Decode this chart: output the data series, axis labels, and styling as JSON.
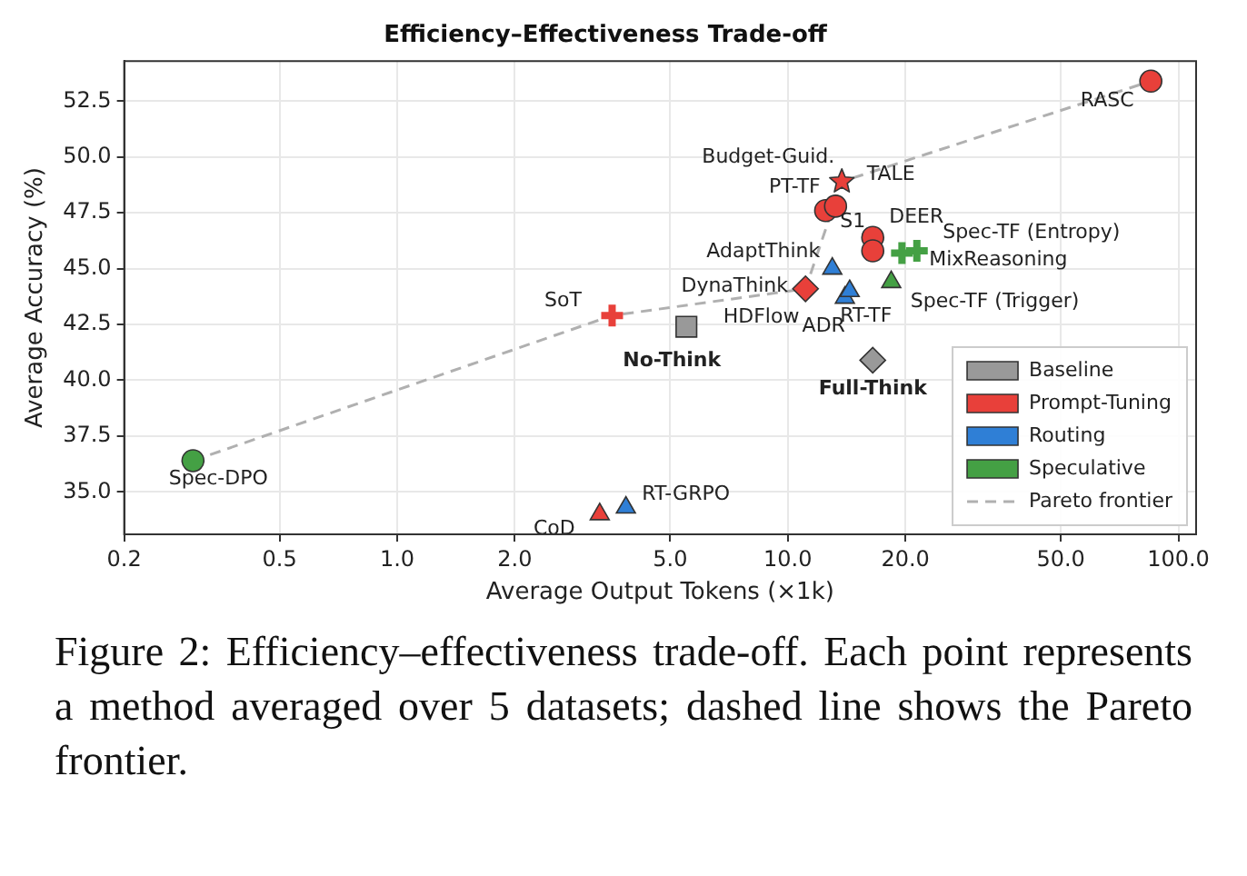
{
  "chart_data": {
    "type": "scatter",
    "title": "Efficiency–Effectiveness Trade-off",
    "xlabel": "Average Output Tokens (×1k)",
    "ylabel": "Average Accuracy (%)",
    "log": "x",
    "grid": true,
    "legend": "bottom right",
    "xlim": [
      0.2,
      111
    ],
    "ylim": [
      33.1,
      54.3
    ],
    "xticks": [
      {
        "value": 0.2,
        "label": "0.2"
      },
      {
        "value": 0.5,
        "label": "0.5"
      },
      {
        "value": 1,
        "label": "1.0"
      },
      {
        "value": 2,
        "label": "2.0"
      },
      {
        "value": 5,
        "label": "5.0"
      },
      {
        "value": 10,
        "label": "10.0"
      },
      {
        "value": 20,
        "label": "20.0"
      },
      {
        "value": 50,
        "label": "50.0"
      },
      {
        "value": 100,
        "label": "100.0"
      }
    ],
    "yticks": [
      {
        "value": 35,
        "label": "35.0"
      },
      {
        "value": 37.5,
        "label": "37.5"
      },
      {
        "value": 40,
        "label": "40.0"
      },
      {
        "value": 42.5,
        "label": "42.5"
      },
      {
        "value": 45,
        "label": "45.0"
      },
      {
        "value": 47.5,
        "label": "47.5"
      },
      {
        "value": 50,
        "label": "50.0"
      },
      {
        "value": 52.5,
        "label": "52.5"
      }
    ],
    "series": [
      {
        "name": "Baseline",
        "color": "#999999",
        "marker": "square",
        "x": [
          5.5
        ],
        "values": [
          42.4
        ]
      },
      {
        "color": "#999999",
        "marker": "diamond",
        "x": [
          16.5
        ],
        "values": [
          40.9
        ]
      },
      {
        "name": "Prompt-Tuning",
        "color": "#e8403a",
        "marker": "circle",
        "x": [
          12.5,
          13.25,
          16.5,
          16.5,
          85
        ],
        "values": [
          47.6,
          47.8,
          46.4,
          45.8,
          53.4
        ]
      },
      {
        "color": "#e8403a",
        "marker": "cross",
        "x": [
          3.55
        ],
        "values": [
          42.9
        ]
      },
      {
        "color": "#e8403a",
        "marker": "triangle",
        "x": [
          3.3
        ],
        "values": [
          34.0
        ]
      },
      {
        "color": "#e8403a",
        "marker": "diamond",
        "x": [
          11.1
        ],
        "values": [
          44.1
        ]
      },
      {
        "color": "#e8403a",
        "marker": "star",
        "x": [
          13.75
        ],
        "values": [
          48.9
        ]
      },
      {
        "name": "Routing",
        "color": "#2f7fd6",
        "marker": "triangle",
        "x": [
          13,
          14,
          14.2,
          14.4,
          3.85
        ],
        "values": [
          45.0,
          43.7,
          null,
          44.0,
          34.3
        ]
      },
      {
        "name": "Speculative",
        "color": "#44a044",
        "marker": "circle",
        "x": [
          0.3
        ],
        "values": [
          36.4
        ]
      },
      {
        "color": "#44a044",
        "marker": "cross",
        "x": [
          21.4,
          19.6
        ],
        "values": [
          45.8,
          45.7
        ]
      },
      {
        "color": "#44a044",
        "marker": "triangle",
        "x": [
          18.4
        ],
        "values": [
          44.4
        ]
      },
      {
        "name": "Pareto frontier",
        "type": "line",
        "color": "#b0b0b0",
        "line_style": "dashed",
        "marker": "none",
        "x": [
          0.3,
          3.55,
          11.1,
          13.75,
          85
        ],
        "values": [
          36.4,
          42.9,
          44.1,
          48.9,
          53.4
        ]
      }
    ],
    "annotations": [
      {
        "text": "Spec-DPO",
        "x": 0.3,
        "y": 36.4
      },
      {
        "text": "SoT",
        "x": 3.55,
        "y": 42.9
      },
      {
        "text": "CoD",
        "x": 3.3,
        "y": 34.0
      },
      {
        "text": "RT-GRPO",
        "x": 3.85,
        "y": 34.3
      },
      {
        "text": "No-Think",
        "x": 5.5,
        "y": 42.4
      },
      {
        "text": "Full-Think",
        "x": 16.5,
        "y": 40.9
      },
      {
        "text": "RASC",
        "x": 85,
        "y": 53.4
      },
      {
        "text": "Budget-Guid.",
        "x": 13.25,
        "y": 47.8
      },
      {
        "text": "TALE",
        "x": 13.75,
        "y": 48.9
      },
      {
        "text": "PT-TF",
        "x": 12.5,
        "y": 47.6
      },
      {
        "text": "S1",
        "x": 16.5,
        "y": 45.8
      },
      {
        "text": "DEER",
        "x": 16.5,
        "y": 46.4
      },
      {
        "text": "Spec-TF (Entropy)",
        "x": 21.4,
        "y": 45.8
      },
      {
        "text": "MixReasoning",
        "x": 19.6,
        "y": 45.7
      },
      {
        "text": "AdaptThink",
        "x": 13,
        "y": 45.0
      },
      {
        "text": "DynaThink",
        "x": 11.1,
        "y": 44.1
      },
      {
        "text": "HDFlow",
        "x": 14,
        "y": 43.7
      },
      {
        "text": "ADR",
        "x": 14.2,
        "y": 43.8
      },
      {
        "text": "RT-TF",
        "x": 14.4,
        "y": 44.0
      },
      {
        "text": "Spec-TF (Trigger)",
        "x": 18.4,
        "y": 44.4
      },
      "Figure 2: Efficiency–effectiveness trade-off. Each point represents a method averaged over 5 datasets; dashed line shows the Pareto frontier."
    ]
  }
}
